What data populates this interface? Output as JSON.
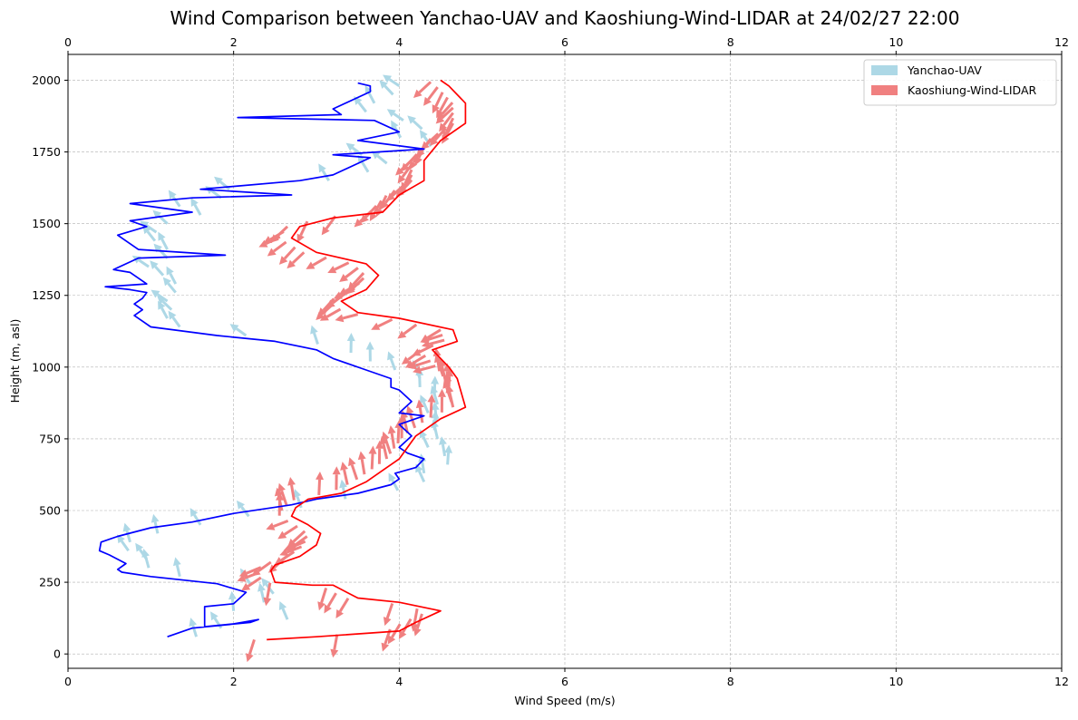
{
  "chart_data": {
    "type": "line",
    "title": "Wind Comparison between Yanchao-UAV and Kaoshiung-Wind-LIDAR at 24/02/27 22:00",
    "xlabel": "Wind Speed (m/s)",
    "ylabel": "Height (m, asl)",
    "xlim": [
      0,
      12
    ],
    "ylim": [
      -50,
      2090
    ],
    "x_ticks": [
      "0",
      "2",
      "4",
      "6",
      "8",
      "10",
      "12"
    ],
    "y_ticks": [
      "0",
      "250",
      "500",
      "750",
      "1000",
      "1250",
      "1500",
      "1750",
      "2000"
    ],
    "x_tick_values": [
      0,
      2,
      4,
      6,
      8,
      10,
      12
    ],
    "y_tick_values": [
      0,
      250,
      500,
      750,
      1000,
      1250,
      1500,
      1750,
      2000
    ],
    "grid": true,
    "legend_position": "top-right",
    "legend": [
      {
        "label": "Yanchao-UAV",
        "color": "#add8e6"
      },
      {
        "label": "Kaoshiung-Wind-LIDAR",
        "color": "#f08080"
      }
    ],
    "series": [
      {
        "name": "Yanchao-UAV",
        "line_color": "#0000ff",
        "arrow_color": "#add8e6",
        "points": [
          [
            1.2,
            60
          ],
          [
            1.5,
            90
          ],
          [
            2.2,
            110
          ],
          [
            2.3,
            120
          ],
          [
            2.0,
            105
          ],
          [
            1.65,
            95
          ],
          [
            1.65,
            165
          ],
          [
            2.0,
            175
          ],
          [
            2.15,
            215
          ],
          [
            1.8,
            245
          ],
          [
            1.0,
            270
          ],
          [
            0.65,
            285
          ],
          [
            0.6,
            295
          ],
          [
            0.7,
            315
          ],
          [
            0.6,
            330
          ],
          [
            0.5,
            345
          ],
          [
            0.38,
            360
          ],
          [
            0.4,
            390
          ],
          [
            0.6,
            410
          ],
          [
            1.0,
            440
          ],
          [
            1.5,
            460
          ],
          [
            2.0,
            490
          ],
          [
            2.7,
            520
          ],
          [
            3.0,
            540
          ],
          [
            3.5,
            560
          ],
          [
            3.9,
            590
          ],
          [
            4.0,
            610
          ],
          [
            3.95,
            630
          ],
          [
            4.2,
            650
          ],
          [
            4.3,
            680
          ],
          [
            4.1,
            700
          ],
          [
            4.0,
            720
          ],
          [
            4.15,
            760
          ],
          [
            4.0,
            800
          ],
          [
            4.3,
            830
          ],
          [
            4.0,
            840
          ],
          [
            4.15,
            880
          ],
          [
            4.0,
            920
          ],
          [
            3.9,
            930
          ],
          [
            3.9,
            960
          ],
          [
            3.6,
            990
          ],
          [
            3.2,
            1030
          ],
          [
            3.0,
            1060
          ],
          [
            2.5,
            1090
          ],
          [
            1.8,
            1110
          ],
          [
            1.0,
            1140
          ],
          [
            0.9,
            1160
          ],
          [
            0.8,
            1180
          ],
          [
            0.9,
            1200
          ],
          [
            0.8,
            1220
          ],
          [
            0.9,
            1240
          ],
          [
            0.95,
            1260
          ],
          [
            0.75,
            1270
          ],
          [
            0.45,
            1280
          ],
          [
            0.95,
            1290
          ],
          [
            0.75,
            1330
          ],
          [
            0.55,
            1340
          ],
          [
            0.85,
            1380
          ],
          [
            1.9,
            1390
          ],
          [
            0.85,
            1410
          ],
          [
            0.6,
            1460
          ],
          [
            0.95,
            1490
          ],
          [
            0.75,
            1510
          ],
          [
            1.5,
            1540
          ],
          [
            0.75,
            1570
          ],
          [
            1.5,
            1590
          ],
          [
            2.7,
            1600
          ],
          [
            1.6,
            1620
          ],
          [
            2.8,
            1650
          ],
          [
            3.2,
            1670
          ],
          [
            3.65,
            1730
          ],
          [
            3.2,
            1740
          ],
          [
            4.3,
            1760
          ],
          [
            3.5,
            1790
          ],
          [
            4.0,
            1820
          ],
          [
            3.7,
            1860
          ],
          [
            2.05,
            1870
          ],
          [
            3.3,
            1880
          ],
          [
            3.2,
            1900
          ],
          [
            3.65,
            1960
          ],
          [
            3.65,
            1980
          ],
          [
            3.5,
            1990
          ]
        ]
      },
      {
        "name": "Kaoshiung-Wind-LIDAR",
        "line_color": "#ff0000",
        "arrow_color": "#f08080",
        "points": [
          [
            2.4,
            50
          ],
          [
            3.0,
            60
          ],
          [
            4.0,
            80
          ],
          [
            4.2,
            110
          ],
          [
            4.5,
            150
          ],
          [
            4.0,
            180
          ],
          [
            3.5,
            195
          ],
          [
            3.2,
            240
          ],
          [
            2.95,
            240
          ],
          [
            2.5,
            250
          ],
          [
            2.45,
            290
          ],
          [
            2.5,
            310
          ],
          [
            2.8,
            340
          ],
          [
            3.0,
            380
          ],
          [
            3.05,
            420
          ],
          [
            2.9,
            450
          ],
          [
            2.7,
            480
          ],
          [
            2.75,
            510
          ],
          [
            2.9,
            540
          ],
          [
            3.3,
            560
          ],
          [
            3.6,
            600
          ],
          [
            3.8,
            640
          ],
          [
            4.0,
            680
          ],
          [
            4.2,
            760
          ],
          [
            4.5,
            820
          ],
          [
            4.8,
            860
          ],
          [
            4.7,
            960
          ],
          [
            4.6,
            1000
          ],
          [
            4.4,
            1060
          ],
          [
            4.7,
            1090
          ],
          [
            4.65,
            1130
          ],
          [
            4.0,
            1170
          ],
          [
            3.5,
            1190
          ],
          [
            3.3,
            1230
          ],
          [
            3.6,
            1270
          ],
          [
            3.75,
            1320
          ],
          [
            3.6,
            1360
          ],
          [
            3.0,
            1400
          ],
          [
            2.7,
            1450
          ],
          [
            2.8,
            1490
          ],
          [
            3.2,
            1520
          ],
          [
            3.8,
            1540
          ],
          [
            4.0,
            1600
          ],
          [
            4.3,
            1650
          ],
          [
            4.3,
            1720
          ],
          [
            4.5,
            1790
          ],
          [
            4.8,
            1850
          ],
          [
            4.8,
            1920
          ],
          [
            4.6,
            1980
          ],
          [
            4.5,
            2000
          ]
        ]
      }
    ]
  }
}
